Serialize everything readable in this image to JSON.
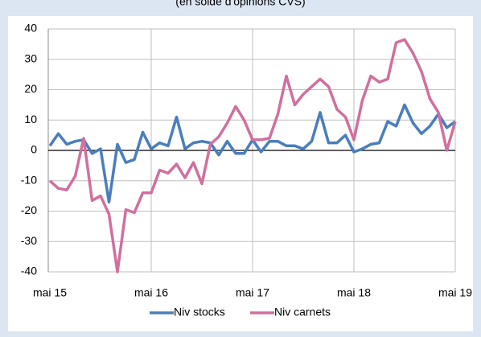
{
  "chart_data": {
    "type": "line",
    "subtitle": "(en solde d'opinions CVS)",
    "categories": [
      "mai 15",
      null,
      null,
      null,
      null,
      null,
      null,
      null,
      null,
      null,
      null,
      null,
      "mai 16",
      null,
      null,
      null,
      null,
      null,
      null,
      null,
      null,
      null,
      null,
      null,
      "mai 17",
      null,
      null,
      null,
      null,
      null,
      null,
      null,
      null,
      null,
      null,
      null,
      "mai 18",
      null,
      null,
      null,
      null,
      null,
      null,
      null,
      null,
      null,
      null,
      null,
      "mai 19"
    ],
    "series": [
      {
        "name": "Niv stocks",
        "color": "#4a7ebb",
        "values": [
          1.5,
          5.5,
          2,
          3,
          3.5,
          -1,
          0.5,
          -17,
          2,
          -4,
          -3,
          6,
          0.5,
          2.5,
          1.5,
          11,
          0.5,
          2.5,
          3,
          2.5,
          -1.5,
          3,
          -1,
          -1,
          3.5,
          -0.5,
          3,
          3,
          1.5,
          1.5,
          0.5,
          3,
          12.5,
          2.5,
          2.5,
          5,
          -0.5,
          0.5,
          2,
          2.5,
          9.5,
          8,
          15,
          9,
          5.5,
          8,
          12,
          7.5,
          9.5
        ]
      },
      {
        "name": "Niv carnets",
        "color": "#d16f9e",
        "values": [
          -10,
          -12.5,
          -13,
          -8.5,
          4,
          -16.5,
          -15,
          -21,
          -40,
          -19.5,
          -20.5,
          -14,
          -14,
          -6.5,
          -7.5,
          -4.5,
          -9,
          -4,
          -11,
          2,
          4.5,
          9,
          14.5,
          10,
          3.5,
          3.5,
          4,
          12,
          24.5,
          15,
          18.5,
          21,
          23.5,
          21,
          13.5,
          11,
          3.5,
          16.5,
          24.5,
          22.5,
          23.5,
          35.5,
          36.5,
          32,
          26,
          17,
          12.5,
          0,
          9.5
        ]
      }
    ],
    "ylim": [
      -40,
      40
    ],
    "yticks": [
      -40,
      -30,
      -20,
      -10,
      0,
      10,
      20,
      30,
      40
    ],
    "grid": true,
    "legend": "bottom"
  }
}
